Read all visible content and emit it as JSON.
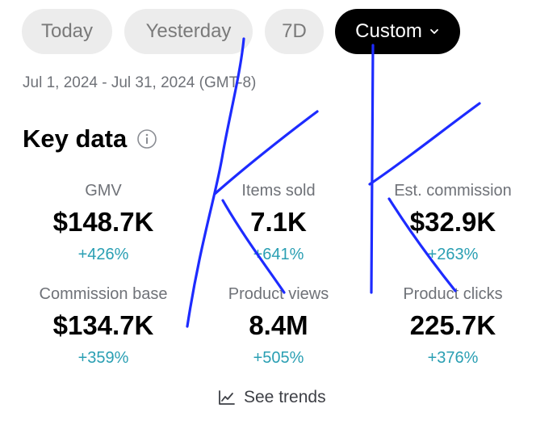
{
  "tabs": {
    "today": "Today",
    "yesterday": "Yesterday",
    "seven_days": "7D",
    "custom": "Custom",
    "custom_icon": "chevron-down-icon"
  },
  "date_range": "Jul 1, 2024 - Jul 31, 2024 (GMT-8)",
  "section": {
    "title": "Key data",
    "info_icon": "info-icon"
  },
  "metrics": [
    {
      "label": "GMV",
      "value": "$148.7K",
      "change": "+426%"
    },
    {
      "label": "Items sold",
      "value": "7.1K",
      "change": "+641%"
    },
    {
      "label": "Est. commission",
      "value": "$32.9K",
      "change": "+263%"
    },
    {
      "label": "Commission base",
      "value": "$134.7K",
      "change": "+359%"
    },
    {
      "label": "Product views",
      "value": "8.4M",
      "change": "+505%"
    },
    {
      "label": "Product clicks",
      "value": "225.7K",
      "change": "+376%"
    }
  ],
  "see_trends": {
    "label": "See trends",
    "icon": "line-chart-icon"
  },
  "colors": {
    "active_tab_bg": "#000000",
    "inactive_tab_bg": "#ececec",
    "change_text": "#2a9fb3",
    "scribble": "#1d2bff"
  }
}
